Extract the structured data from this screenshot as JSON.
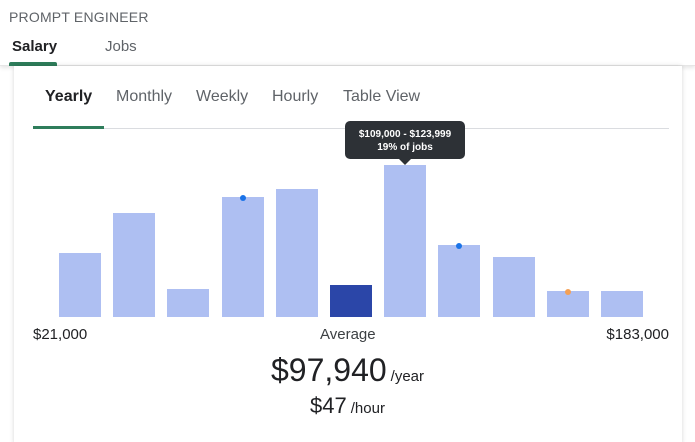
{
  "page": {
    "title": "PROMPT ENGINEER",
    "tabs": [
      {
        "label": "Salary",
        "active": true
      },
      {
        "label": "Jobs",
        "active": false
      }
    ]
  },
  "view_tabs": [
    {
      "label": "Yearly",
      "active": true
    },
    {
      "label": "Monthly",
      "active": false
    },
    {
      "label": "Weekly",
      "active": false
    },
    {
      "label": "Hourly",
      "active": false
    },
    {
      "label": "Table View",
      "active": false
    }
  ],
  "chart_data": {
    "type": "bar",
    "values_percent_of_jobs": [
      8,
      13,
      3.5,
      15,
      16,
      4,
      19,
      9,
      7.5,
      3.2,
      3.2
    ],
    "highlight_index": 5,
    "markers": [
      {
        "bar_index": 3,
        "color": "#1a73e8"
      },
      {
        "bar_index": 7,
        "color": "#1a73e8"
      },
      {
        "bar_index": 9,
        "color": "#f4a055"
      }
    ],
    "tooltip": {
      "bar_index": 6,
      "range": "$109,000 - $123,999",
      "share": "19% of jobs"
    },
    "x_min_label": "$21,000",
    "x_max_label": "$183,000",
    "average_label": "Average",
    "colors": {
      "bar": "#aebff2",
      "highlight": "#2b46a8"
    }
  },
  "summary": {
    "yearly_value": "$97,940",
    "yearly_unit": "/year",
    "hourly_value": "$47",
    "hourly_unit": "/hour"
  }
}
